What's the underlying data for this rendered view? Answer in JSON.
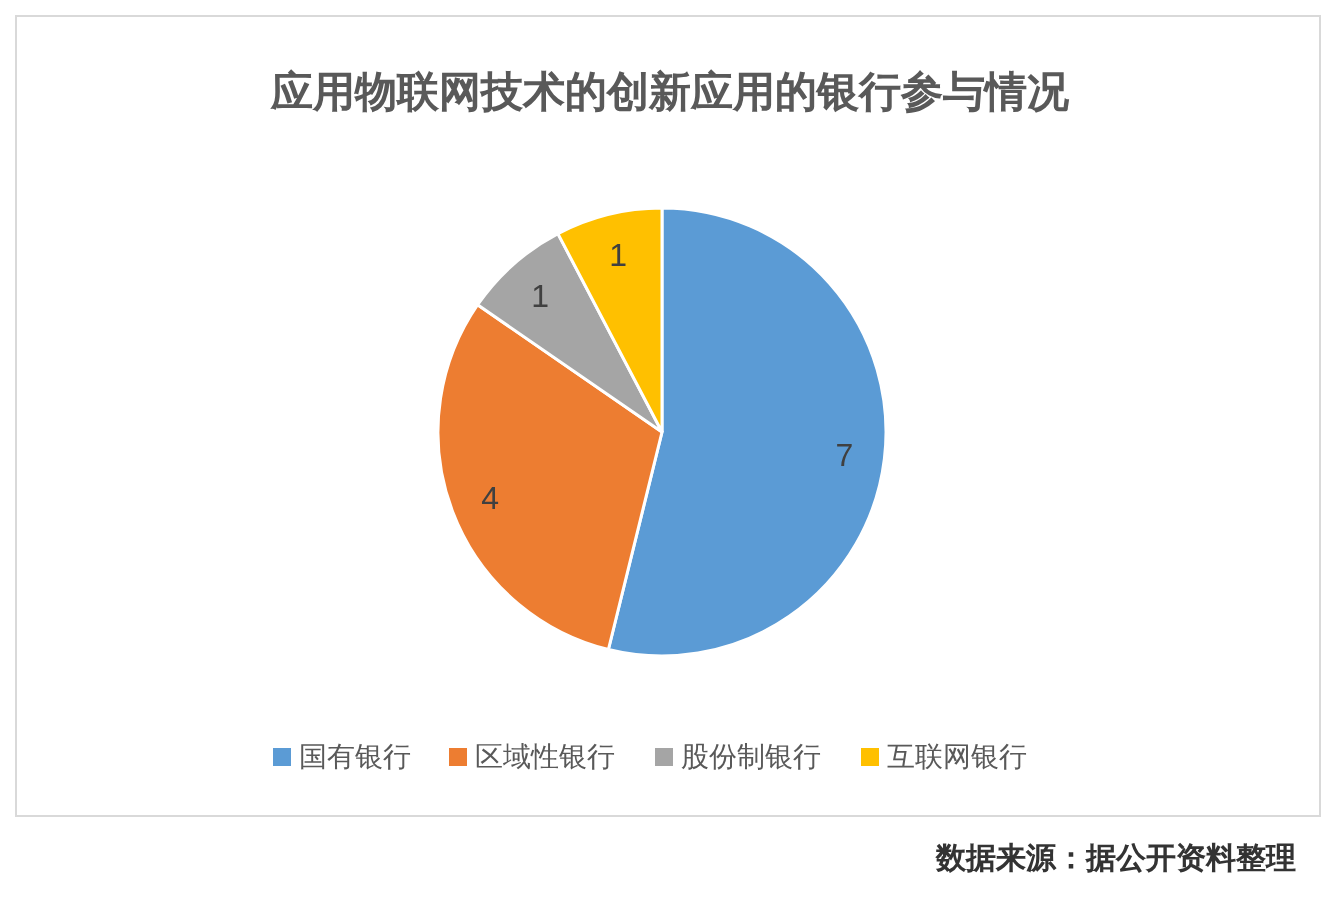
{
  "chart_data": {
    "type": "pie",
    "title": "应用物联网技术的创新应用的银行参与情况",
    "categories": [
      "国有银行",
      "区域性银行",
      "股份制银行",
      "互联网银行"
    ],
    "values": [
      7,
      4,
      1,
      1
    ],
    "colors": [
      "#5b9bd5",
      "#ed7d31",
      "#a5a5a5",
      "#ffc000"
    ],
    "data_labels": true,
    "legend": "bottom",
    "annotations": [
      "数据来源：据公开资料整理"
    ]
  }
}
